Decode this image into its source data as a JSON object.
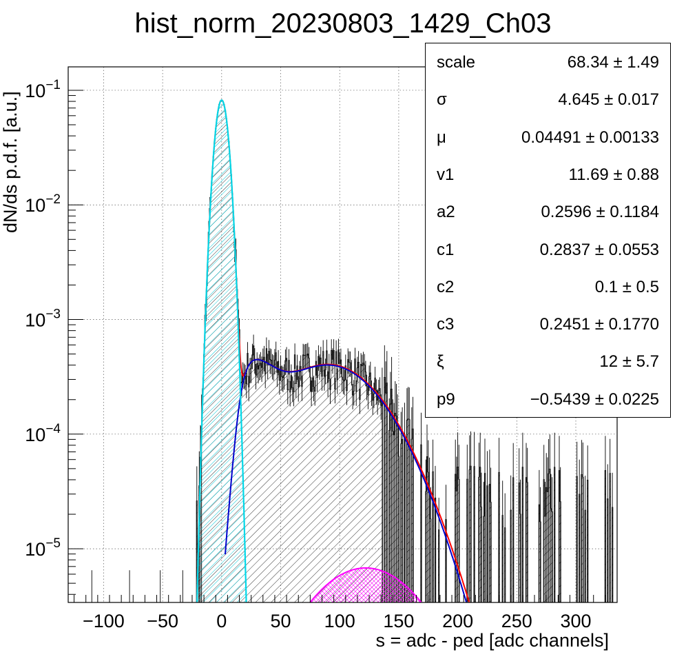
{
  "title": "hist_norm_20230803_1429_Ch03",
  "chart_data": {
    "type": "histogram",
    "xlabel": "s = adc - ped [adc channels]",
    "ylabel": "dN/ds p.d.f. [a.u.]",
    "xlim": [
      -130,
      335
    ],
    "ylim": [
      3.4e-06,
      0.16
    ],
    "yscale": "log",
    "grid": true,
    "x_ticks": [
      "−100",
      "−50",
      "0",
      "50",
      "100",
      "150",
      "200",
      "250",
      "300"
    ],
    "y_ticks": [
      {
        "base": "10",
        "exp": "−1"
      },
      {
        "base": "10",
        "exp": "−2"
      },
      {
        "base": "10",
        "exp": "−3"
      },
      {
        "base": "10",
        "exp": "−4"
      },
      {
        "base": "10",
        "exp": "−5"
      }
    ],
    "fit_components": [
      {
        "color": "#00d8e8",
        "peak_x": 0,
        "peak_y": 0.082,
        "sigma": 4.645
      },
      {
        "color": "#0000cc",
        "bumps": [
          {
            "x": 22,
            "y": 0.00039
          },
          {
            "x": 90,
            "y": 0.00041
          }
        ]
      },
      {
        "color": "#ff00ff",
        "peak_x": 122,
        "peak_y": 6.8e-06
      },
      {
        "color": "#ff0000",
        "role": "total"
      }
    ],
    "stats": [
      {
        "name": "scale",
        "value": "68.34 ± 1.49"
      },
      {
        "name": "σ",
        "value": "4.645 ± 0.017"
      },
      {
        "name": "μ",
        "value": "0.04491 ± 0.00133"
      },
      {
        "name": "v1",
        "value": "11.69 ± 0.88"
      },
      {
        "name": "a2",
        "value": "0.2596 ± 0.1184"
      },
      {
        "name": "c1",
        "value": "0.2837 ± 0.0553"
      },
      {
        "name": "c2",
        "value": "0.1 ± 0.5"
      },
      {
        "name": "c3",
        "value": "0.2451 ± 0.1770"
      },
      {
        "name": "ξ",
        "value": "12 ± 5.7"
      },
      {
        "name": "p9",
        "value": "−0.5439 ± 0.0225"
      }
    ]
  }
}
